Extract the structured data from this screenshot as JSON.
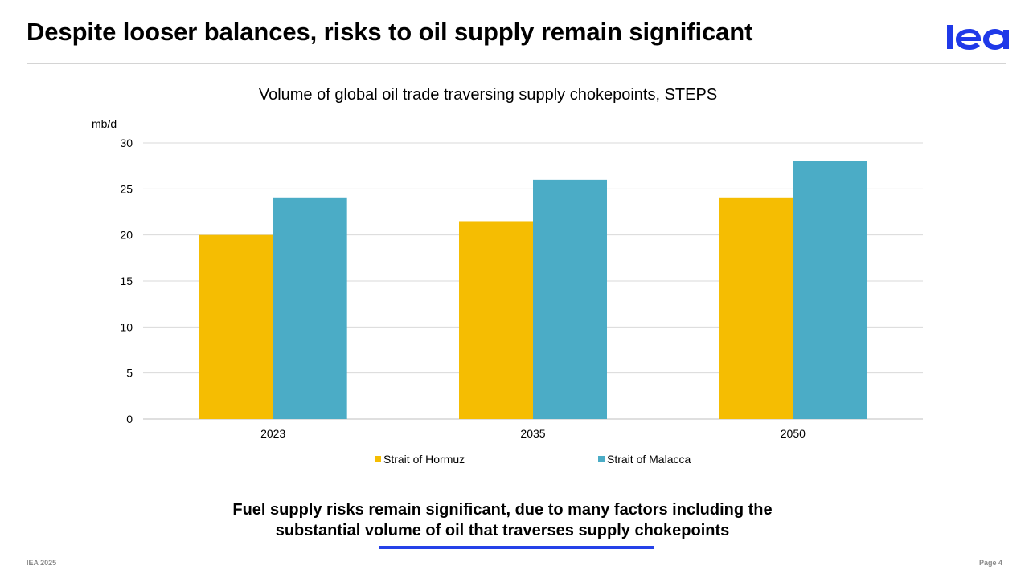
{
  "slide": {
    "title": "Despite looser balances, risks to oil supply remain significant",
    "takeaway_line1": "Fuel supply risks remain significant, due to many factors including the",
    "takeaway_line2": "substantial volume of oil that traverses supply chokepoints",
    "footer_left": "IEA 2025",
    "footer_right": "Page 4"
  },
  "logo": {
    "icon": "iea-logo",
    "text": "iea",
    "color": "#1f39e8"
  },
  "colors": {
    "accent": "#2541e8",
    "hormuz": "#f5bd02",
    "malacca": "#4bacc6",
    "grid": "#d9d9d9",
    "axis": "#bfbfbf"
  },
  "chart_data": {
    "type": "bar",
    "title": "Volume of global oil trade traversing supply chokepoints, STEPS",
    "ylabel": "mb/d",
    "xlabel": "",
    "categories": [
      "2023",
      "2035",
      "2050"
    ],
    "series": [
      {
        "name": "Strait of Hormuz",
        "values": [
          20,
          21.5,
          24
        ],
        "color": "#f5bd02"
      },
      {
        "name": "Strait of Malacca",
        "values": [
          24,
          26,
          28
        ],
        "color": "#4bacc6"
      }
    ],
    "ylim": [
      0,
      30
    ],
    "yticks": [
      0,
      5,
      10,
      15,
      20,
      25,
      30
    ],
    "grid": true,
    "legend": "bottom"
  }
}
